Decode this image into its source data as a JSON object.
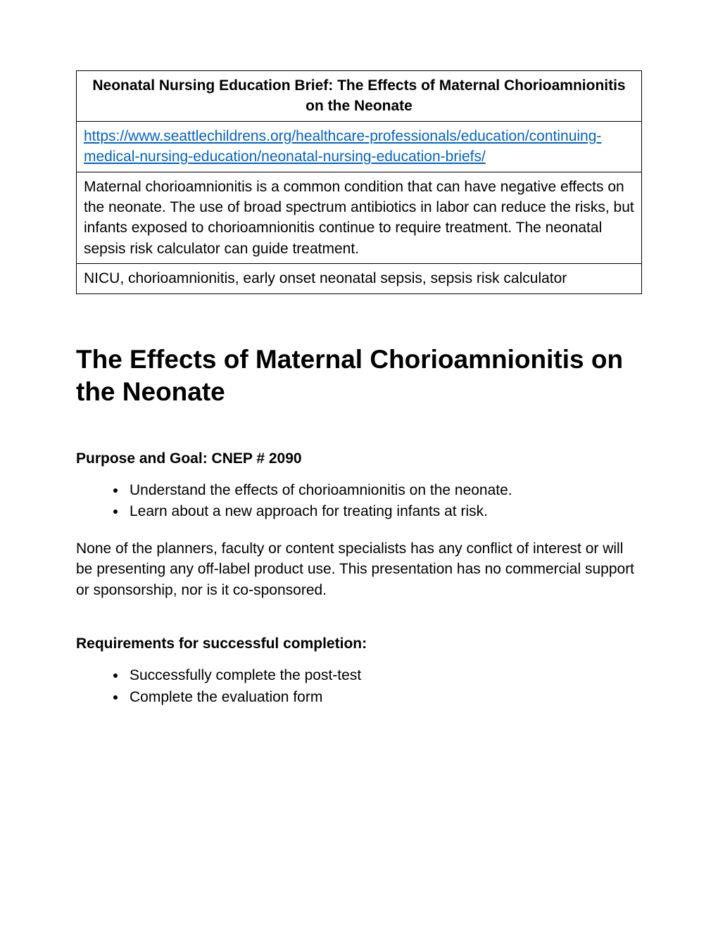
{
  "colors": {
    "text": "#000000",
    "link": "#0563c1",
    "border": "#000000",
    "background": "#ffffff"
  },
  "typography": {
    "body_fontsize": 21,
    "title_fontsize": 37,
    "heading_fontsize": 21,
    "font_family": "Arial"
  },
  "infoTable": {
    "header": "Neonatal Nursing Education Brief:  The Effects of Maternal Chorioamnionitis on the Neonate",
    "url": "https://www.seattlechildrens.org/healthcare-professionals/education/continuing-medical-nursing-education/neonatal-nursing-education-briefs/",
    "summary": "Maternal chorioamnionitis is a common condition that can have negative effects on the neonate.  The use of broad spectrum antibiotics in labor can reduce the risks, but infants exposed to chorioamnionitis continue to require treatment. The neonatal sepsis risk calculator can guide treatment.",
    "keywords": "NICU, chorioamnionitis, early onset neonatal sepsis, sepsis risk calculator"
  },
  "title": "The Effects of Maternal Chorioamnionitis on the Neonate",
  "purpose": {
    "heading": "Purpose and Goal: CNEP # 2090",
    "bullets": [
      "Understand the effects of chorioamnionitis on the neonate.",
      "Learn about a new approach for treating infants at risk."
    ],
    "disclosure": "None of the planners, faculty or content specialists has any conflict of interest or will be presenting any off-label product use. This presentation has no commercial support or sponsorship, nor is it co-sponsored."
  },
  "requirements": {
    "heading": "Requirements for successful completion:",
    "bullets": [
      "Successfully complete the post-test",
      "Complete the evaluation form"
    ]
  }
}
